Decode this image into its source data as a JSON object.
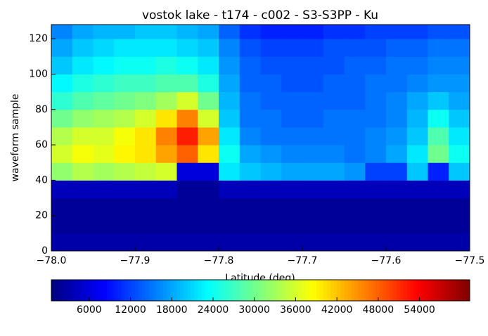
{
  "chart_data": {
    "type": "heatmap",
    "title": "vostok lake - t174 - c002 - S3-S3PP - Ku",
    "x_label": "Latitude (deg)",
    "y_label": "waveform sample",
    "xbins": [
      -78.0,
      -77.975,
      -77.95,
      -77.925,
      -77.9,
      -77.875,
      -77.85,
      -77.825,
      -77.8,
      -77.775,
      -77.75,
      -77.725,
      -77.7,
      -77.675,
      -77.65,
      -77.625,
      -77.6,
      -77.575,
      -77.55,
      -77.525,
      -77.5
    ],
    "ybins": [
      0,
      10,
      20,
      30,
      40,
      50,
      60,
      70,
      80,
      90,
      100,
      110,
      120,
      128
    ],
    "z": [
      [
        3000,
        3000,
        3000,
        3000,
        3000,
        3000,
        3000,
        3000,
        3000,
        3000,
        3000,
        3000,
        3000,
        3000,
        3000,
        3000,
        3000,
        3000,
        3000,
        3000
      ],
      [
        2000,
        2000,
        2000,
        2000,
        2000,
        2000,
        2000,
        2000,
        2000,
        2000,
        2000,
        2000,
        2000,
        2000,
        2000,
        2000,
        2000,
        2000,
        2000,
        2000
      ],
      [
        2000,
        2000,
        2000,
        2000,
        2000,
        2000,
        2000,
        2000,
        2000,
        2000,
        2000,
        2000,
        2000,
        2000,
        2000,
        2000,
        2000,
        2000,
        2000,
        2000
      ],
      [
        4000,
        4000,
        4000,
        4000,
        4000,
        4000,
        2000,
        2000,
        4000,
        4000,
        4000,
        4000,
        4000,
        4000,
        4000,
        4000,
        4000,
        4000,
        4000,
        4000
      ],
      [
        32000,
        34000,
        33000,
        34000,
        35000,
        36000,
        6000,
        6000,
        22000,
        20000,
        19000,
        18000,
        18000,
        18000,
        17000,
        12000,
        12000,
        20000,
        10000,
        20000
      ],
      [
        36000,
        38000,
        37000,
        39000,
        40000,
        44000,
        48000,
        40000,
        24000,
        18000,
        17000,
        16000,
        16000,
        16000,
        15000,
        16000,
        18000,
        22000,
        30000,
        24000
      ],
      [
        34000,
        36000,
        36000,
        38000,
        40000,
        46000,
        52000,
        44000,
        22000,
        16000,
        15000,
        15000,
        15000,
        15000,
        15000,
        16000,
        17000,
        20000,
        28000,
        22000
      ],
      [
        30000,
        32000,
        33000,
        34000,
        36000,
        40000,
        46000,
        36000,
        20000,
        15000,
        15000,
        14000,
        14000,
        15000,
        15000,
        15000,
        16000,
        19000,
        24000,
        20000
      ],
      [
        26000,
        28000,
        29000,
        30000,
        31000,
        33000,
        36000,
        30000,
        19000,
        15000,
        14000,
        14000,
        14000,
        14000,
        14000,
        15000,
        16000,
        18000,
        20000,
        18000
      ],
      [
        23000,
        25000,
        26000,
        27000,
        27000,
        28000,
        28000,
        25000,
        18000,
        14000,
        14000,
        13000,
        13000,
        14000,
        14000,
        15000,
        15000,
        16000,
        17000,
        17000
      ],
      [
        20000,
        22000,
        23000,
        24000,
        24000,
        25000,
        24000,
        22000,
        17000,
        14000,
        13000,
        13000,
        13000,
        13000,
        14000,
        14000,
        15000,
        15000,
        16000,
        16000
      ],
      [
        18000,
        20000,
        21000,
        22000,
        22000,
        22000,
        21000,
        20000,
        16000,
        13000,
        12000,
        12000,
        12000,
        13000,
        13000,
        13000,
        14000,
        14000,
        15000,
        15000
      ],
      [
        16000,
        18000,
        19000,
        19000,
        20000,
        20000,
        19000,
        18000,
        14000,
        11000,
        10000,
        10000,
        10000,
        11000,
        11000,
        12000,
        12000,
        12000,
        13000,
        13000
      ]
    ],
    "xlim": [
      -78.0,
      -77.5
    ],
    "ylim": [
      0,
      128
    ],
    "xticks": [
      {
        "value": -78.0,
        "label": "−78.0"
      },
      {
        "value": -77.9,
        "label": "−77.9"
      },
      {
        "value": -77.8,
        "label": "−77.8"
      },
      {
        "value": -77.7,
        "label": "−77.7"
      },
      {
        "value": -77.6,
        "label": "−77.6"
      },
      {
        "value": -77.5,
        "label": "−77.5"
      }
    ],
    "yticks": [
      0,
      20,
      40,
      60,
      80,
      100,
      120
    ],
    "clim": [
      500,
      61300
    ],
    "cticks": [
      6000,
      12000,
      18000,
      24000,
      30000,
      36000,
      42000,
      48000,
      54000
    ],
    "colormap": "jet"
  }
}
